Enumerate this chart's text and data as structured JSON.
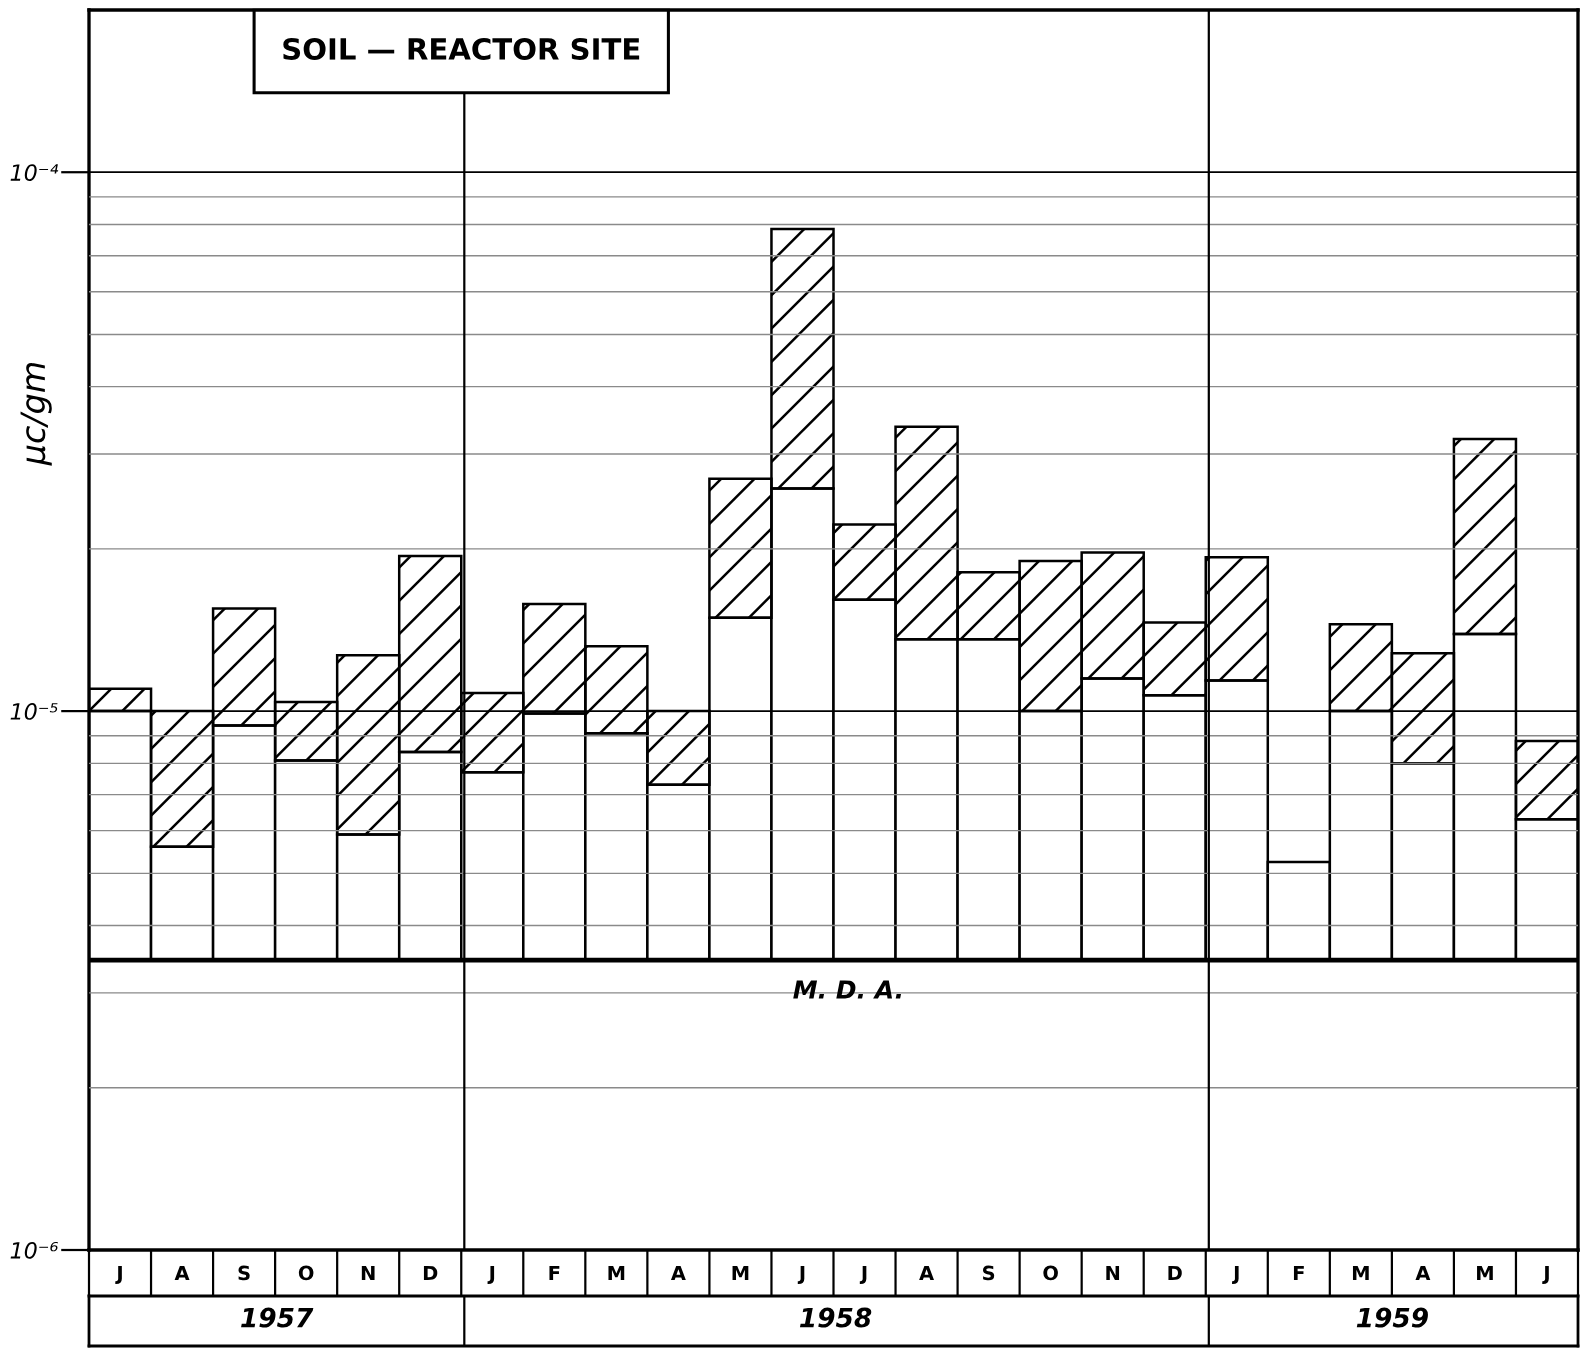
{
  "chart_data": {
    "type": "bar",
    "title": "SOIL — REACTOR SITE",
    "ylabel": "μc/gm",
    "categories": [
      "J",
      "A",
      "S",
      "O",
      "N",
      "D",
      "J",
      "F",
      "M",
      "A",
      "M",
      "J",
      "J",
      "A",
      "S",
      "O",
      "N",
      "D",
      "J",
      "F",
      "M",
      "A",
      "M",
      "J"
    ],
    "series": [
      {
        "color": "#ffffff",
        "base": [
          3.45e-06,
          3.45e-06,
          3.45e-06,
          3.45e-06,
          3.45e-06,
          3.45e-06,
          3.45e-06,
          3.45e-06,
          3.45e-06,
          3.45e-06,
          3.45e-06,
          3.45e-06,
          3.45e-06,
          3.45e-06,
          3.45e-06,
          3.45e-06,
          3.45e-06,
          3.45e-06,
          3.45e-06,
          3.45e-06,
          3.45e-06,
          3.45e-06,
          3.45e-06,
          3.45e-06
        ],
        "values": [
          6.55e-06,
          2.15e-06,
          5.95e-06,
          4.65e-06,
          2.45e-06,
          4.95e-06,
          4.25e-06,
          6.45e-06,
          5.65e-06,
          3.85e-06,
          1.145e-05,
          2.245e-05,
          1.265e-05,
          1.015e-05,
          1.015e-05,
          6.55e-06,
          8.05e-06,
          7.25e-06,
          7.95e-06,
          1.8e-06,
          6.55e-06,
          4.55e-06,
          1.045e-05,
          2.85e-06
        ]
      },
      {
        "color": "#000000",
        "base": [
          1e-05,
          5.6e-06,
          9.4e-06,
          8.1e-06,
          5.9e-06,
          8.4e-06,
          7.7e-06,
          9.9e-06,
          9.1e-06,
          7.3e-06,
          1.49e-05,
          2.59e-05,
          1.61e-05,
          1.36e-05,
          1.36e-05,
          1e-05,
          1.15e-05,
          1.07e-05,
          1.14e-05,
          null,
          1e-05,
          8e-06,
          1.39e-05,
          6.3e-06
        ],
        "values": [
          1e-06,
          4.4e-06,
          6.1e-06,
          2.3e-06,
          6.8e-06,
          1.1e-05,
          3.1e-06,
          5.9e-06,
          4.1e-06,
          2.7e-06,
          1.21e-05,
          5.26e-05,
          6.1e-06,
          2.01e-05,
          4.5e-06,
          9e-06,
          8.2e-06,
          3.9e-06,
          7.9e-06,
          null,
          4.5e-06,
          4.8e-06,
          1.81e-05,
          2.5e-06
        ]
      }
    ],
    "log": "y",
    "ylim": [
      1e-06,
      0.0002
    ],
    "yticks": [
      {
        "value": 1e-06,
        "label": "10⁻⁶"
      },
      {
        "value": 2e-06,
        "label": null
      },
      {
        "value": 3e-06,
        "label": null
      },
      {
        "value": 4e-06,
        "label": null
      },
      {
        "value": 5e-06,
        "label": null
      },
      {
        "value": 6e-06,
        "label": null
      },
      {
        "value": 7e-06,
        "label": null
      },
      {
        "value": 8e-06,
        "label": null
      },
      {
        "value": 9e-06,
        "label": null
      },
      {
        "value": 1e-05,
        "label": "10⁻⁵"
      },
      {
        "value": 2e-05,
        "label": null
      },
      {
        "value": 3e-05,
        "label": null
      },
      {
        "value": 4e-05,
        "label": null
      },
      {
        "value": 5e-05,
        "label": null
      },
      {
        "value": 6e-05,
        "label": null
      },
      {
        "value": 7e-05,
        "label": null
      },
      {
        "value": 8e-05,
        "label": null
      },
      {
        "value": 9e-05,
        "label": null
      },
      {
        "value": 0.0001,
        "label": "10⁻⁴"
      }
    ],
    "x2lim": [
      "1957-07",
      "1959-07"
    ],
    "x2ticks": [
      {
        "value": "1957-10-01",
        "label": "1957"
      },
      {
        "value": "1958-07-02",
        "label": "1958"
      },
      {
        "value": "1959-04-01",
        "label": "1959"
      },
      {
        "value": "1958-01",
        "label": null
      },
      {
        "value": "1959-01",
        "label": null
      }
    ],
    "grid": "y",
    "ref_lines": [
      {
        "axis": "y",
        "value": 3.45e-06,
        "label": "M. D. A."
      },
      {
        "axis": "x2",
        "value": "1958-01"
      },
      {
        "axis": "x2",
        "value": "1959-01"
      }
    ]
  }
}
